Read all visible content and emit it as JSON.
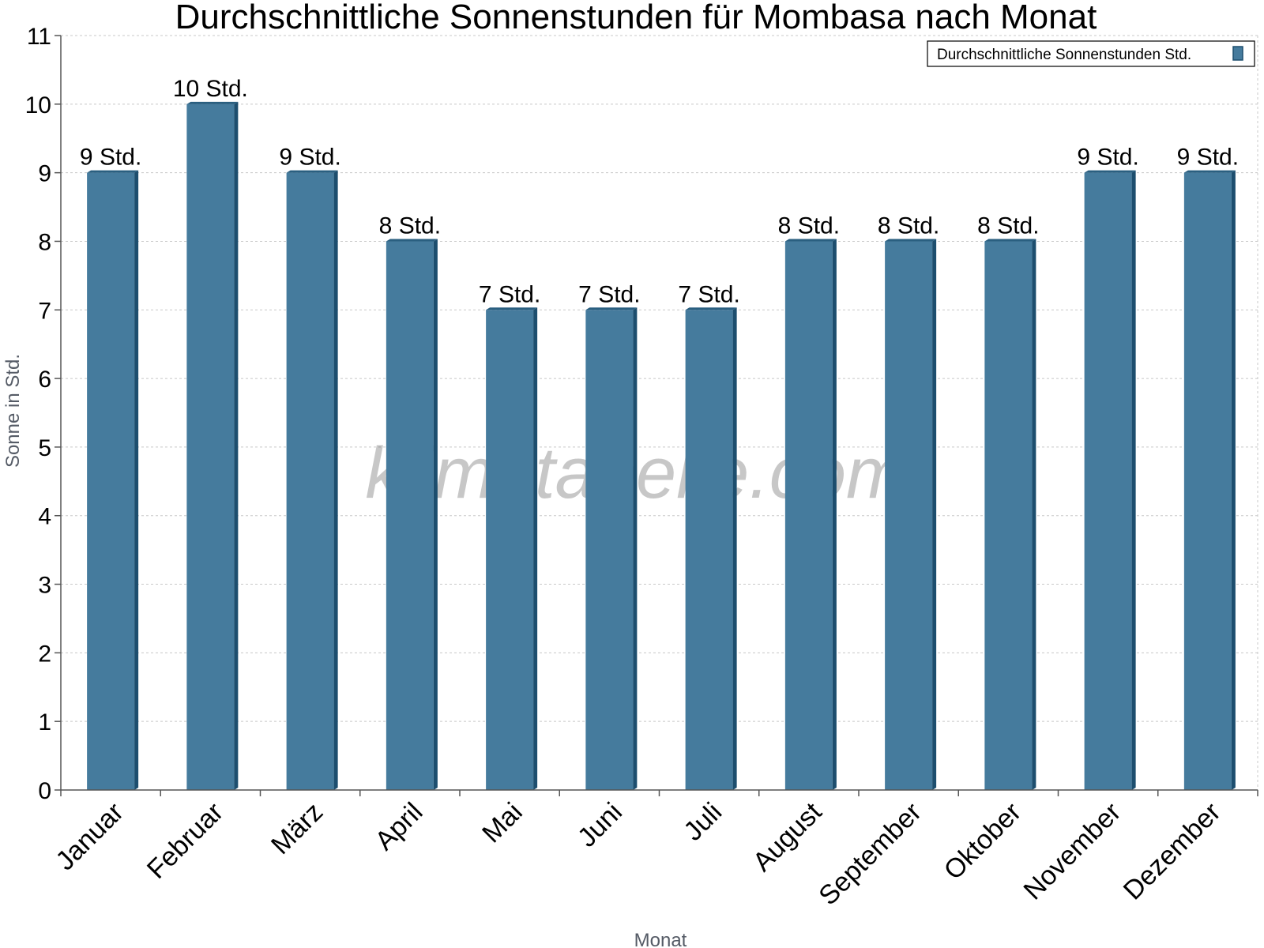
{
  "chart_data": {
    "type": "bar",
    "title": "Durchschnittliche Sonnenstunden für Mombasa nach Monat",
    "xlabel": "Monat",
    "ylabel": "Sonne in Std.",
    "ylim": [
      0,
      11
    ],
    "yticks": [
      "0",
      "1",
      "2",
      "3",
      "4",
      "5",
      "6",
      "7",
      "8",
      "9",
      "10",
      "11"
    ],
    "grid": true,
    "legend_position": "top-right",
    "categories": [
      "Januar",
      "Februar",
      "März",
      "April",
      "Mai",
      "Juni",
      "Juli",
      "August",
      "September",
      "Oktober",
      "November",
      "Dezember"
    ],
    "series": [
      {
        "name": "Durchschnittliche Sonnenstunden Std.",
        "values": [
          9,
          10,
          9,
          8,
          7,
          7,
          7,
          8,
          8,
          8,
          9,
          9
        ],
        "labels": [
          "9 Std.",
          "10 Std.",
          "9 Std.",
          "8 Std.",
          "7 Std.",
          "7 Std.",
          "7 Std.",
          "8 Std.",
          "8 Std.",
          "8 Std.",
          "9 Std.",
          "9 Std."
        ],
        "color": "#457b9d",
        "side_color": "#1d4e6e",
        "top_color": "#2a5f80"
      }
    ],
    "watermark": "klimatabelle.com"
  }
}
